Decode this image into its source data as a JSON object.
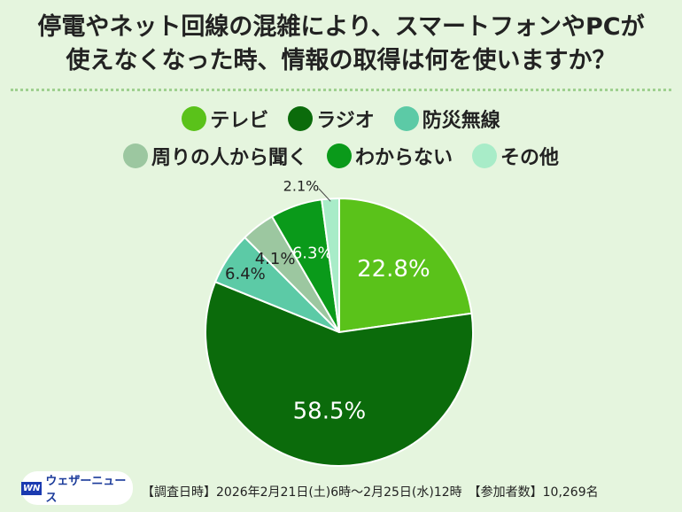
{
  "chart_data": {
    "type": "pie",
    "title_lines": [
      "停電やネット回線の混雑により、スマートフォンやPCが",
      "使えなくなった時、情報の取得は何を使いますか？"
    ],
    "categories": [
      "テレビ",
      "ラジオ",
      "防災無線",
      "周りの人から聞く",
      "わからない",
      "その他"
    ],
    "values": [
      22.8,
      58.5,
      6.4,
      4.1,
      6.3,
      2.1
    ],
    "labels": [
      "22.8%",
      "58.5%",
      "6.4%",
      "4.1%",
      "6.3%",
      "2.1%"
    ],
    "colors": [
      "#5ac21a",
      "#0b6b0b",
      "#5ccaa6",
      "#9cc7a0",
      "#0a9a1a",
      "#a8ecc8"
    ],
    "label_colors": [
      "#ffffff",
      "#ffffff",
      "#222222",
      "#222222",
      "#ffffff",
      "#222222"
    ],
    "start": "top",
    "direction": "clockwise",
    "legend_position": "top"
  },
  "footer": {
    "logo_mark": "WN",
    "logo_text": "ウェザーニュース",
    "note": "【調査日時】2026年2月21日(土)6時～2月25日(水)12時　【参加者数】10,269名"
  }
}
